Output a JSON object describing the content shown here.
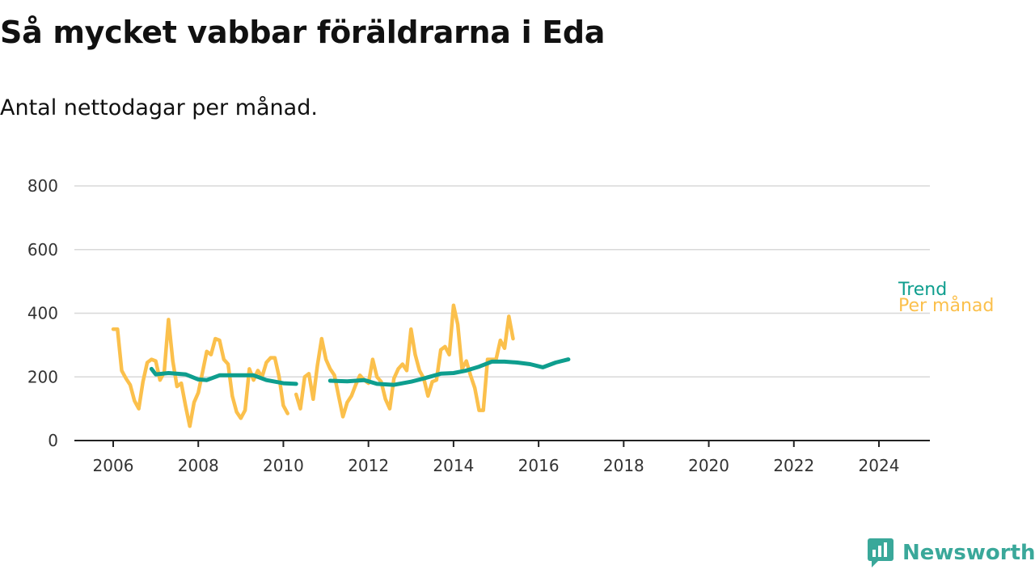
{
  "title": "Så mycket vabbar föräldrarna i Eda",
  "subtitle": "Antal nettodagar per månad.",
  "brand": {
    "name": "Newsworthy"
  },
  "colors": {
    "trend": "#0e9e8e",
    "monthly": "#fbc04c",
    "grid": "#d8d8d8",
    "axis": "#222222",
    "brand": "#3aa89a"
  },
  "chart_data": {
    "type": "line",
    "title": "Så mycket vabbar föräldrarna i Eda",
    "subtitle": "Antal nettodagar per månad.",
    "xlabel": "",
    "ylabel": "",
    "xlim": [
      2005.1,
      2025.3
    ],
    "ylim": [
      0,
      800
    ],
    "yticks": [
      0,
      200,
      400,
      600,
      800
    ],
    "xticks": [
      2006,
      2008,
      2010,
      2012,
      2014,
      2016,
      2018,
      2020,
      2022,
      2024
    ],
    "grid": "horizontal",
    "legend": "direct labels at right end of lines",
    "series": [
      {
        "name": "Per månad",
        "color": "#fbc04c",
        "segments": [
          [
            [
              2006.0,
              350
            ],
            [
              2006.1,
              350
            ],
            [
              2006.2,
              220
            ],
            [
              2006.3,
              195
            ],
            [
              2006.4,
              175
            ],
            [
              2006.5,
              125
            ],
            [
              2006.6,
              100
            ],
            [
              2006.7,
              185
            ],
            [
              2006.8,
              245
            ],
            [
              2006.9,
              255
            ],
            [
              2007.0,
              250
            ],
            [
              2007.1,
              190
            ],
            [
              2007.2,
              215
            ],
            [
              2007.3,
              380
            ],
            [
              2007.4,
              250
            ],
            [
              2007.5,
              170
            ],
            [
              2007.6,
              180
            ],
            [
              2007.7,
              110
            ],
            [
              2007.8,
              45
            ],
            [
              2007.9,
              120
            ],
            [
              2008.0,
              150
            ],
            [
              2008.1,
              215
            ],
            [
              2008.2,
              280
            ],
            [
              2008.3,
              270
            ],
            [
              2008.4,
              320
            ],
            [
              2008.5,
              315
            ],
            [
              2008.6,
              255
            ],
            [
              2008.7,
              240
            ],
            [
              2008.8,
              140
            ],
            [
              2008.9,
              90
            ],
            [
              2009.0,
              70
            ],
            [
              2009.1,
              95
            ],
            [
              2009.2,
              225
            ],
            [
              2009.3,
              190
            ],
            [
              2009.4,
              220
            ],
            [
              2009.5,
              200
            ],
            [
              2009.6,
              245
            ],
            [
              2009.7,
              260
            ],
            [
              2009.8,
              260
            ],
            [
              2009.9,
              200
            ],
            [
              2010.0,
              110
            ],
            [
              2010.1,
              85
            ]
          ],
          [
            [
              2010.3,
              145
            ],
            [
              2010.4,
              100
            ],
            [
              2010.5,
              200
            ],
            [
              2010.6,
              210
            ],
            [
              2010.7,
              130
            ],
            [
              2010.8,
              235
            ],
            [
              2010.9,
              320
            ],
            [
              2011.0,
              255
            ],
            [
              2011.1,
              225
            ],
            [
              2011.2,
              205
            ],
            [
              2011.3,
              140
            ],
            [
              2011.4,
              75
            ],
            [
              2011.5,
              120
            ],
            [
              2011.6,
              140
            ],
            [
              2011.7,
              175
            ],
            [
              2011.8,
              205
            ],
            [
              2011.9,
              190
            ],
            [
              2012.0,
              180
            ],
            [
              2012.1,
              255
            ],
            [
              2012.2,
              200
            ],
            [
              2012.3,
              185
            ],
            [
              2012.4,
              130
            ],
            [
              2012.5,
              100
            ],
            [
              2012.6,
              195
            ],
            [
              2012.7,
              225
            ],
            [
              2012.8,
              240
            ],
            [
              2012.9,
              220
            ],
            [
              2013.0,
              350
            ],
            [
              2013.1,
              270
            ],
            [
              2013.2,
              220
            ],
            [
              2013.3,
              195
            ],
            [
              2013.4,
              140
            ],
            [
              2013.5,
              185
            ],
            [
              2013.6,
              190
            ],
            [
              2013.7,
              285
            ],
            [
              2013.8,
              295
            ],
            [
              2013.9,
              270
            ],
            [
              2014.0,
              425
            ],
            [
              2014.1,
              365
            ],
            [
              2014.2,
              225
            ],
            [
              2014.3,
              250
            ],
            [
              2014.4,
              205
            ],
            [
              2014.5,
              165
            ],
            [
              2014.6,
              95
            ],
            [
              2014.7,
              95
            ],
            [
              2014.8,
              255
            ],
            [
              2014.9,
              255
            ],
            [
              2015.0,
              255
            ],
            [
              2015.1,
              315
            ],
            [
              2015.2,
              290
            ],
            [
              2015.3,
              390
            ],
            [
              2015.4,
              320
            ]
          ]
        ],
        "x": [
          2006.0,
          2006.1,
          2006.2,
          2006.3,
          2006.4,
          2006.5,
          2006.6,
          2006.7,
          2006.8,
          2006.9,
          2007.0,
          2007.1,
          2007.2,
          2007.3,
          2007.4,
          2007.5,
          2007.6,
          2007.7,
          2007.8,
          2007.9,
          2008.0,
          2008.1,
          2008.2,
          2008.3,
          2008.4,
          2008.5,
          2008.6,
          2008.7,
          2008.8,
          2008.9,
          2009.0,
          2009.1,
          2009.2,
          2009.3,
          2009.4,
          2009.5,
          2009.6,
          2009.7,
          2009.8,
          2009.9,
          2010.0,
          2010.1
        ],
        "values": [
          350,
          350,
          220,
          195,
          175,
          125,
          100,
          185,
          245,
          255,
          250,
          190,
          215,
          380,
          250,
          170,
          180,
          110,
          45,
          120,
          150,
          215,
          280,
          270,
          320,
          315,
          255,
          240,
          140,
          90,
          70,
          95,
          225,
          190,
          220,
          200,
          245,
          260,
          260,
          200,
          110,
          85
        ]
      },
      {
        "name": "Trend",
        "color": "#0e9e8e",
        "segments": [
          [
            [
              2006.9,
              225
            ],
            [
              2007.0,
              208
            ],
            [
              2007.3,
              212
            ],
            [
              2007.7,
              208
            ],
            [
              2008.0,
              192
            ],
            [
              2008.2,
              190
            ],
            [
              2008.5,
              205
            ],
            [
              2008.9,
              205
            ],
            [
              2009.3,
              205
            ],
            [
              2009.6,
              190
            ],
            [
              2010.0,
              180
            ],
            [
              2010.3,
              178
            ]
          ],
          [
            [
              2011.1,
              188
            ],
            [
              2011.5,
              186
            ],
            [
              2011.9,
              190
            ],
            [
              2012.2,
              178
            ],
            [
              2012.6,
              175
            ],
            [
              2013.0,
              185
            ],
            [
              2013.3,
              195
            ],
            [
              2013.7,
              210
            ],
            [
              2014.0,
              212
            ],
            [
              2014.3,
              220
            ],
            [
              2014.6,
              232
            ],
            [
              2014.9,
              248
            ],
            [
              2015.2,
              248
            ],
            [
              2015.5,
              245
            ],
            [
              2015.8,
              240
            ],
            [
              2016.1,
              230
            ],
            [
              2016.4,
              245
            ],
            [
              2016.7,
              255
            ]
          ]
        ]
      }
    ]
  }
}
